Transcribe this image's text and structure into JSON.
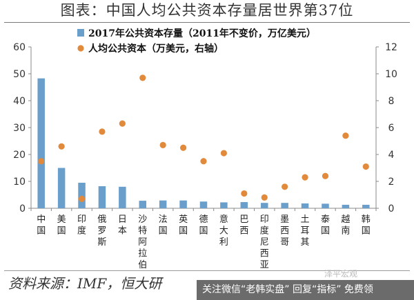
{
  "header": {
    "title": "图表：中国人均公共资本存量居世界第37位"
  },
  "footer": {
    "source": "资料来源：IMF，恒大研",
    "banner": "关注微信“老韩实盘” 回复“指标” 免费领",
    "watermark": "泽平宏观"
  },
  "colors": {
    "bar": "#6a9fcb",
    "dot": "#e28a3b",
    "axis": "#888888",
    "text": "#222222"
  },
  "chart_data": {
    "type": "bar",
    "categories": [
      "中国",
      "美国",
      "印度",
      "俄罗斯",
      "日本",
      "沙特阿拉伯",
      "法国",
      "英国",
      "德国",
      "意大利",
      "巴西",
      "印度尼西亚",
      "墨西哥",
      "土耳其",
      "泰国",
      "越南",
      "韩国"
    ],
    "series": [
      {
        "name": "2017年公共资本存量（2011年不变价，万亿美元）",
        "type": "bar",
        "axis": "left",
        "values": [
          48.3,
          15.0,
          9.5,
          8.2,
          8.0,
          2.8,
          2.9,
          2.9,
          2.5,
          2.2,
          2.3,
          2.0,
          2.0,
          1.8,
          1.7,
          1.3,
          1.3
        ]
      },
      {
        "name": "人均公共资本（万美元，右轴）",
        "type": "scatter",
        "axis": "right",
        "values": [
          3.5,
          4.6,
          0.7,
          5.7,
          6.3,
          9.7,
          4.7,
          4.5,
          3.5,
          4.1,
          1.1,
          0.8,
          1.6,
          2.3,
          2.4,
          5.4,
          3.1
        ]
      }
    ],
    "y_left": {
      "ylim": [
        0,
        60
      ],
      "ticks": [
        "0",
        "10",
        "20",
        "30",
        "40",
        "50",
        "60"
      ]
    },
    "y_right": {
      "ylim": [
        0,
        12
      ],
      "ticks": [
        "0",
        "2",
        "4",
        "6",
        "8",
        "10",
        "12"
      ]
    },
    "grid": false,
    "legend_placement": "top-center"
  }
}
